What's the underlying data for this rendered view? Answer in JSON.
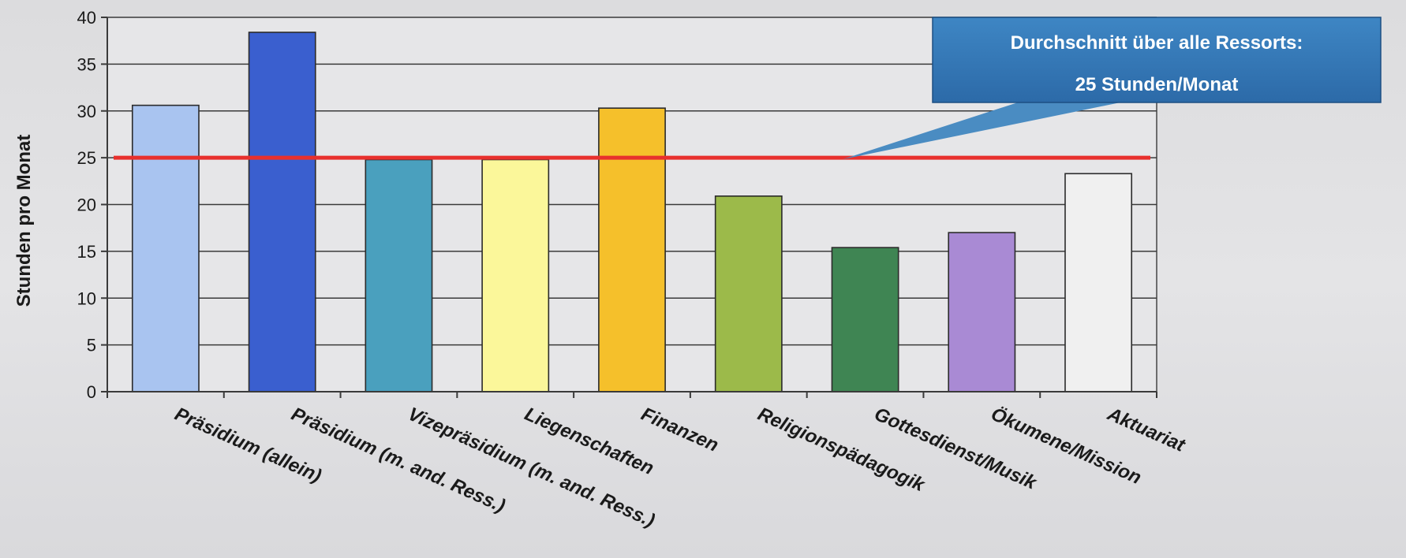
{
  "chart_data": {
    "type": "bar",
    "title": "",
    "xlabel": "",
    "ylabel": "Stunden pro Monat",
    "ylim": [
      0,
      40
    ],
    "yticks": [
      0,
      5,
      10,
      15,
      20,
      25,
      30,
      35,
      40
    ],
    "grid": true,
    "categories": [
      "Präsidium (allein)",
      "Präsidium (m. and. Ress.)",
      "Vizepräsidium (m. and. Ress.)",
      "Liegenschaften",
      "Finanzen",
      "Religionspädagogik",
      "Gottesdienst/Musik",
      "Ökumene/Mission",
      "Aktuariat"
    ],
    "values": [
      30.6,
      38.4,
      24.8,
      24.8,
      30.3,
      20.9,
      15.4,
      17.0,
      23.3
    ],
    "colors": [
      "#a9c4f0",
      "#3a5fcf",
      "#4aa0be",
      "#fbf79a",
      "#f5c02b",
      "#9cba4a",
      "#3f8553",
      "#a98ad4",
      "#f0f0f0"
    ],
    "reference_line": {
      "value": 25,
      "color": "#e8302d"
    },
    "annotation": {
      "line1": "Durchschnitt über alle Ressorts:",
      "line2": "25 Stunden/Monat",
      "color": "#4a8cc2"
    }
  }
}
